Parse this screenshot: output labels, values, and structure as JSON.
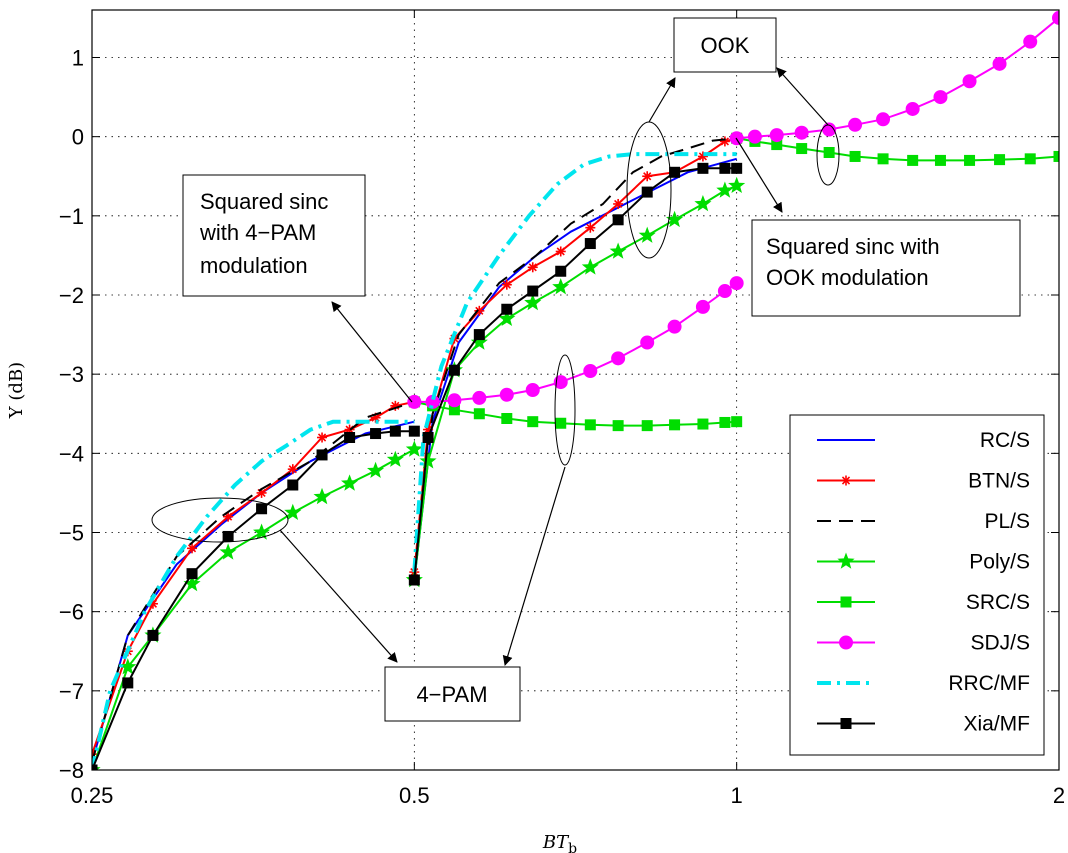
{
  "chart_data": {
    "type": "line",
    "xlabel": "BT",
    "xlabel_sub": "b",
    "ylabel": "Υ (dB)",
    "x_scale": "log",
    "xlim": [
      0.25,
      2
    ],
    "ylim": [
      -8,
      1.6
    ],
    "x_ticks": [
      0.25,
      0.5,
      1,
      2
    ],
    "x_tick_labels": [
      "0.25",
      "0.5",
      "1",
      "2"
    ],
    "y_ticks": [
      -8,
      -7,
      -6,
      -5,
      -4,
      -3,
      -2,
      -1,
      0,
      1
    ],
    "y_tick_labels": [
      "−8",
      "−7",
      "−6",
      "−5",
      "−4",
      "−3",
      "−2",
      "−1",
      "0",
      "1"
    ],
    "grid": true,
    "legend_position": "bottom-right",
    "series": [
      {
        "name": "RC/S",
        "color": "#0000ff",
        "marker": "none",
        "dash": "solid",
        "x": [
          0.25,
          0.27,
          0.3,
          0.33,
          0.36,
          0.4,
          0.45,
          0.5,
          null,
          0.5,
          0.52,
          0.55,
          0.6,
          0.65,
          0.7,
          0.8,
          0.9,
          1.0
        ],
        "y": [
          -7.9,
          -6.3,
          -5.4,
          -4.9,
          -4.5,
          -4.1,
          -3.75,
          -3.6,
          null,
          -5.6,
          -3.6,
          -2.6,
          -1.9,
          -1.5,
          -1.2,
          -0.8,
          -0.45,
          -0.28
        ]
      },
      {
        "name": "BTN/S",
        "color": "#ff0000",
        "marker": "asterisk",
        "dash": "solid",
        "x": [
          0.25,
          0.27,
          0.285,
          0.31,
          0.335,
          0.36,
          0.385,
          0.41,
          0.435,
          0.46,
          0.48,
          0.5,
          null,
          0.5,
          0.515,
          0.545,
          0.575,
          0.61,
          0.645,
          0.685,
          0.73,
          0.775,
          0.825,
          0.875,
          0.93,
          0.975,
          1.0
        ],
        "y": [
          -7.8,
          -6.5,
          -5.9,
          -5.2,
          -4.8,
          -4.5,
          -4.2,
          -3.8,
          -3.7,
          -3.55,
          -3.4,
          -3.35,
          null,
          -5.5,
          -3.7,
          -2.55,
          -2.2,
          -1.87,
          -1.65,
          -1.45,
          -1.15,
          -0.85,
          -0.5,
          -0.45,
          -0.25,
          -0.06,
          -0.02
        ]
      },
      {
        "name": "PL/S",
        "color": "#000000",
        "marker": "none",
        "dash": "dashed",
        "x": [
          0.25,
          0.27,
          0.3,
          0.33,
          0.36,
          0.4,
          0.45,
          0.5,
          null,
          0.5,
          0.52,
          0.55,
          0.6,
          0.65,
          0.7,
          0.75,
          0.8,
          0.85,
          0.9,
          0.95,
          1.0
        ],
        "y": [
          -7.9,
          -6.3,
          -5.3,
          -4.8,
          -4.45,
          -4.1,
          -3.55,
          -3.35,
          null,
          -5.55,
          -3.5,
          -2.5,
          -1.85,
          -1.5,
          -1.1,
          -0.85,
          -0.45,
          -0.25,
          -0.15,
          -0.05,
          -0.02
        ]
      },
      {
        "name": "Poly/S",
        "color": "#00dd00",
        "marker": "star",
        "dash": "solid",
        "x": [
          0.25,
          0.27,
          0.285,
          0.31,
          0.335,
          0.36,
          0.385,
          0.41,
          0.435,
          0.46,
          0.48,
          0.5,
          null,
          0.5,
          0.515,
          0.545,
          0.575,
          0.61,
          0.645,
          0.685,
          0.73,
          0.775,
          0.825,
          0.875,
          0.93,
          0.975,
          1.0
        ],
        "y": [
          -8.0,
          -6.7,
          -6.3,
          -5.65,
          -5.25,
          -5.0,
          -4.75,
          -4.55,
          -4.38,
          -4.22,
          -4.08,
          -3.95,
          null,
          -5.6,
          -4.1,
          -2.95,
          -2.6,
          -2.3,
          -2.1,
          -1.9,
          -1.65,
          -1.45,
          -1.25,
          -1.05,
          -0.85,
          -0.68,
          -0.62
        ]
      },
      {
        "name": "SRC/S",
        "color": "#00dd00",
        "marker": "square",
        "dash": "solid",
        "x": [
          0.5,
          0.52,
          0.545,
          0.575,
          0.61,
          0.645,
          0.685,
          0.73,
          0.775,
          0.825,
          0.875,
          0.93,
          0.975,
          1.0,
          null,
          1.0,
          1.04,
          1.09,
          1.15,
          1.22,
          1.29,
          1.37,
          1.46,
          1.55,
          1.65,
          1.76,
          1.88,
          2.0
        ],
        "y": [
          -3.35,
          -3.4,
          -3.45,
          -3.5,
          -3.56,
          -3.6,
          -3.62,
          -3.64,
          -3.65,
          -3.65,
          -3.64,
          -3.63,
          -3.61,
          -3.6,
          null,
          -0.02,
          -0.06,
          -0.1,
          -0.15,
          -0.2,
          -0.25,
          -0.28,
          -0.3,
          -0.3,
          -0.3,
          -0.29,
          -0.28,
          -0.25
        ]
      },
      {
        "name": "SDJ/S",
        "color": "#ff00ff",
        "marker": "circle",
        "dash": "solid",
        "x": [
          0.5,
          0.52,
          0.545,
          0.575,
          0.61,
          0.645,
          0.685,
          0.73,
          0.775,
          0.825,
          0.875,
          0.93,
          0.975,
          1.0,
          null,
          1.0,
          1.04,
          1.09,
          1.15,
          1.22,
          1.29,
          1.37,
          1.46,
          1.55,
          1.65,
          1.76,
          1.88,
          2.0
        ],
        "y": [
          -3.35,
          -3.35,
          -3.33,
          -3.3,
          -3.26,
          -3.2,
          -3.1,
          -2.96,
          -2.8,
          -2.6,
          -2.4,
          -2.15,
          -1.95,
          -1.85,
          null,
          -0.02,
          0.0,
          0.02,
          0.05,
          0.09,
          0.15,
          0.22,
          0.35,
          0.5,
          0.7,
          0.92,
          1.2,
          1.5
        ]
      },
      {
        "name": "RRC/MF",
        "color": "#00e5ee",
        "marker": "none",
        "dash": "dashdot",
        "x": [
          0.25,
          0.26,
          0.28,
          0.3,
          0.32,
          0.34,
          0.36,
          0.38,
          0.4,
          0.42,
          0.45,
          0.5,
          null,
          0.5,
          0.51,
          0.53,
          0.56,
          0.6,
          0.64,
          0.68,
          0.72,
          0.76,
          0.8,
          0.85,
          0.9,
          0.95,
          1.0
        ],
        "y": [
          -8.0,
          -7.0,
          -6.0,
          -5.3,
          -4.8,
          -4.4,
          -4.1,
          -3.9,
          -3.7,
          -3.6,
          -3.6,
          -3.6,
          null,
          -5.5,
          -3.8,
          -2.9,
          -2.1,
          -1.5,
          -1.0,
          -0.6,
          -0.35,
          -0.25,
          -0.22,
          -0.22,
          -0.22,
          -0.22,
          -0.22
        ]
      },
      {
        "name": "Xia/MF",
        "color": "#000000",
        "marker": "square",
        "dash": "solid",
        "x": [
          0.25,
          0.27,
          0.285,
          0.31,
          0.335,
          0.36,
          0.385,
          0.41,
          0.435,
          0.46,
          0.48,
          0.5,
          null,
          0.5,
          0.515,
          0.545,
          0.575,
          0.61,
          0.645,
          0.685,
          0.73,
          0.775,
          0.825,
          0.875,
          0.93,
          0.975,
          1.0
        ],
        "y": [
          -8.0,
          -6.9,
          -6.3,
          -5.52,
          -5.05,
          -4.7,
          -4.4,
          -4.02,
          -3.8,
          -3.75,
          -3.72,
          -3.72,
          null,
          -5.6,
          -3.8,
          -2.95,
          -2.5,
          -2.18,
          -1.95,
          -1.7,
          -1.35,
          -1.05,
          -0.7,
          -0.45,
          -0.4,
          -0.4,
          -0.4
        ]
      }
    ],
    "annotations": {
      "ook_box": "OOK",
      "pam_box": "4−PAM",
      "sinc_pam_lines": [
        "Squared sinc",
        "with 4−PAM",
        "modulation"
      ],
      "sinc_ook_lines": [
        "Squared sinc with",
        "OOK modulation"
      ]
    }
  }
}
